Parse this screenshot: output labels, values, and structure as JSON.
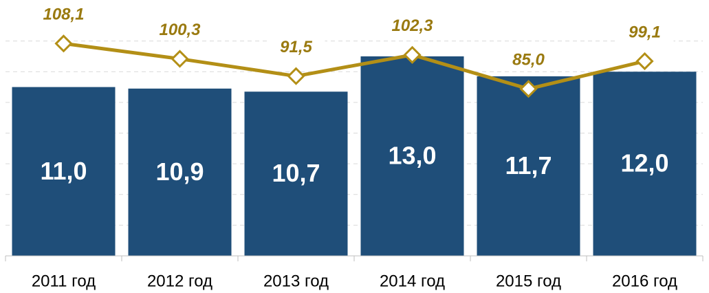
{
  "chart_data": {
    "type": "bar-line",
    "categories": [
      "2011 год",
      "2012 год",
      "2013 год",
      "2014 год",
      "2015 год",
      "2016 год"
    ],
    "series": [
      {
        "type": "bar",
        "color": "#1f4e79",
        "values": [
          11.0,
          10.9,
          10.7,
          13.0,
          11.7,
          12.0
        ],
        "value_labels": [
          "11,0",
          "10,9",
          "10,7",
          "13,0",
          "11,7",
          "12,0"
        ]
      },
      {
        "type": "line",
        "axis": "y2",
        "color": "#b38f16",
        "values": [
          108.1,
          100.3,
          91.5,
          102.3,
          85.0,
          99.1
        ],
        "value_labels": [
          "108,1",
          "100,3",
          "91,5",
          "102,3",
          "85,0",
          "99,1"
        ]
      }
    ],
    "ylim": [
      0,
      16
    ],
    "yticks": [
      2,
      4,
      6,
      8,
      10,
      12,
      14
    ],
    "grid": true,
    "y2lim": [
      0,
      125
    ]
  }
}
